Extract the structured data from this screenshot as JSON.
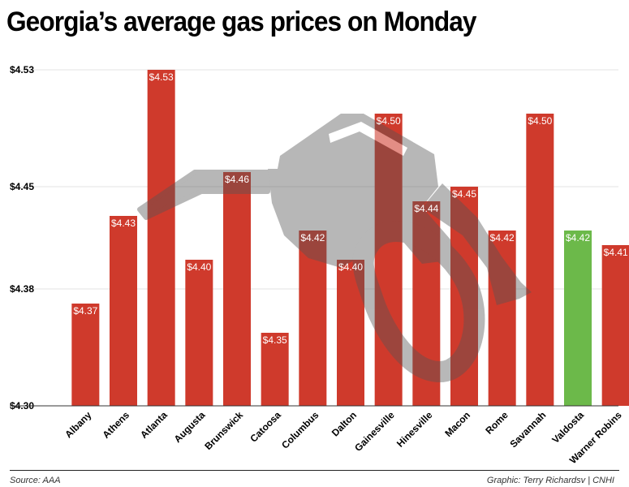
{
  "title": "Georgia’s average gas prices on Monday",
  "source": "Source: AAA",
  "credit": "Graphic: Terry Richardsv | CNHI",
  "colors": {
    "bar": "#cf3a2c",
    "highlight": "#6cb94a",
    "grid": "#e3e3e3",
    "icon": "#555555"
  },
  "chart_data": {
    "type": "bar",
    "categories": [
      "Albany",
      "Athens",
      "Atlanta",
      "Augusta",
      "Brunswick",
      "Catoosa",
      "Columbus",
      "Dalton",
      "Gainesville",
      "Hinesville",
      "Macon",
      "Rome",
      "Savannah",
      "Valdosta",
      "Warner Robins"
    ],
    "values": [
      4.37,
      4.43,
      4.53,
      4.4,
      4.46,
      4.35,
      4.42,
      4.4,
      4.5,
      4.44,
      4.45,
      4.42,
      4.5,
      4.42,
      4.41
    ],
    "labels": [
      "$4.37",
      "$4.43",
      "$4.53",
      "$4.40",
      "$4.46",
      "$4.35",
      "$4.42",
      "$4.40",
      "$4.50",
      "$4.44",
      "$4.45",
      "$4.42",
      "$4.50",
      "$4.42",
      "$4.41"
    ],
    "highlight_category": "Valdosta",
    "yticks": [
      4.3,
      4.38,
      4.45,
      4.53
    ],
    "ytick_labels": [
      "$4.30",
      "$4.38",
      "$4.45",
      "$4.53"
    ],
    "ylim": [
      4.3,
      4.53
    ],
    "grid": true,
    "xlabel": "",
    "ylabel": ""
  }
}
